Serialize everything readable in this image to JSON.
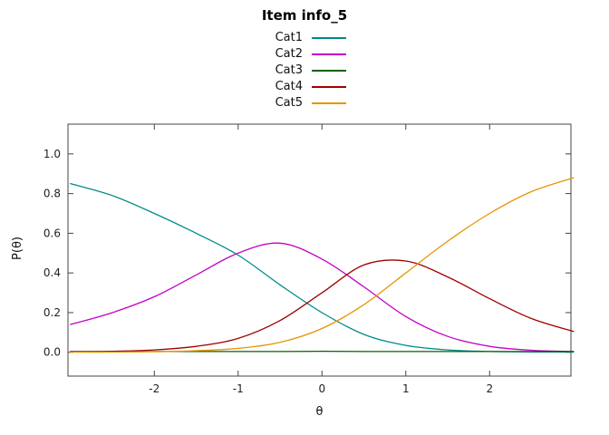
{
  "page": {
    "title": "Item info_5"
  },
  "chart_data": {
    "type": "line",
    "title": "Item info_5",
    "xlabel": "θ",
    "ylabel": "P(θ)",
    "xlim": [
      -3.03,
      2.97
    ],
    "ylim": [
      -0.12,
      1.15
    ],
    "xticks": [
      -2,
      -1,
      0,
      1,
      2
    ],
    "yticks": [
      0.0,
      0.2,
      0.4,
      0.6,
      0.8,
      1.0
    ],
    "grid": false,
    "legend_position": "top-center-above-plot",
    "x": [
      -3.0,
      -2.5,
      -2.0,
      -1.5,
      -1.0,
      -0.5,
      0.0,
      0.5,
      1.0,
      1.5,
      2.0,
      2.5,
      3.0
    ],
    "series": [
      {
        "name": "Cat1",
        "color": "#008B8B",
        "values": [
          0.85,
          0.79,
          0.7,
          0.6,
          0.49,
          0.34,
          0.2,
          0.09,
          0.035,
          0.012,
          0.004,
          0.002,
          0.001
        ]
      },
      {
        "name": "Cat2",
        "color": "#C400C4",
        "values": [
          0.14,
          0.2,
          0.28,
          0.39,
          0.5,
          0.55,
          0.47,
          0.33,
          0.18,
          0.08,
          0.03,
          0.01,
          0.004
        ]
      },
      {
        "name": "Cat3",
        "color": "#006400",
        "values": [
          0.004,
          0.004,
          0.004,
          0.004,
          0.004,
          0.004,
          0.005,
          0.004,
          0.004,
          0.004,
          0.004,
          0.004,
          0.004
        ]
      },
      {
        "name": "Cat4",
        "color": "#A00000",
        "values": [
          0.003,
          0.005,
          0.012,
          0.03,
          0.07,
          0.16,
          0.3,
          0.44,
          0.46,
          0.38,
          0.27,
          0.17,
          0.105
        ]
      },
      {
        "name": "Cat5",
        "color": "#E69500",
        "values": [
          0.001,
          0.001,
          0.003,
          0.008,
          0.02,
          0.05,
          0.12,
          0.24,
          0.4,
          0.56,
          0.7,
          0.81,
          0.88
        ]
      }
    ]
  }
}
